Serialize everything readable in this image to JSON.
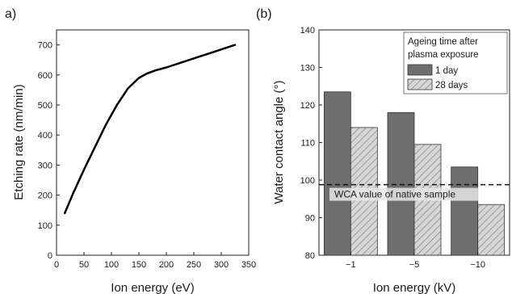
{
  "chart_data": [
    {
      "panel_label": "a)",
      "type": "line",
      "title": "",
      "xlabel": "Ion energy (eV)",
      "ylabel": "Etching rate (nm/min)",
      "xlim": [
        0,
        350
      ],
      "ylim": [
        0,
        750
      ],
      "xticks": [
        "0",
        "50",
        "100",
        "150",
        "200",
        "250",
        "300",
        "350"
      ],
      "yticks": [
        "0",
        "100",
        "200",
        "300",
        "400",
        "500",
        "600",
        "700"
      ],
      "grid": false,
      "series": [
        {
          "color": "#000000",
          "x": [
            15,
            30,
            50,
            70,
            90,
            110,
            130,
            150,
            165,
            180,
            200,
            225,
            250,
            275,
            300,
            325
          ],
          "y": [
            140,
            205,
            285,
            360,
            435,
            500,
            555,
            590,
            605,
            615,
            625,
            640,
            655,
            670,
            685,
            700
          ]
        }
      ]
    },
    {
      "panel_label": "(b)",
      "type": "bar",
      "title": "",
      "xlabel": "Ion energy (kV)",
      "ylabel": "Water contact angle (°)",
      "categories": [
        "−1",
        "−5",
        "−10"
      ],
      "ylim": [
        80,
        140
      ],
      "yticks": [
        "80",
        "90",
        "100",
        "110",
        "120",
        "130",
        "140"
      ],
      "grid": false,
      "legend": {
        "title_line1": "Ageing time after",
        "title_line2": "plasma exposure",
        "placement": "top-right"
      },
      "series": [
        {
          "name": "1 day",
          "values": [
            123.5,
            118,
            103.5
          ],
          "color": "#6e6e6e",
          "pattern": "solid"
        },
        {
          "name": "28 days",
          "values": [
            114,
            109.5,
            93.5
          ],
          "color": "#d0d0d0",
          "pattern": "hatched"
        }
      ],
      "reference_line": {
        "value": 98.8,
        "style": "dashed",
        "label": "WCA value of native sample"
      }
    }
  ]
}
